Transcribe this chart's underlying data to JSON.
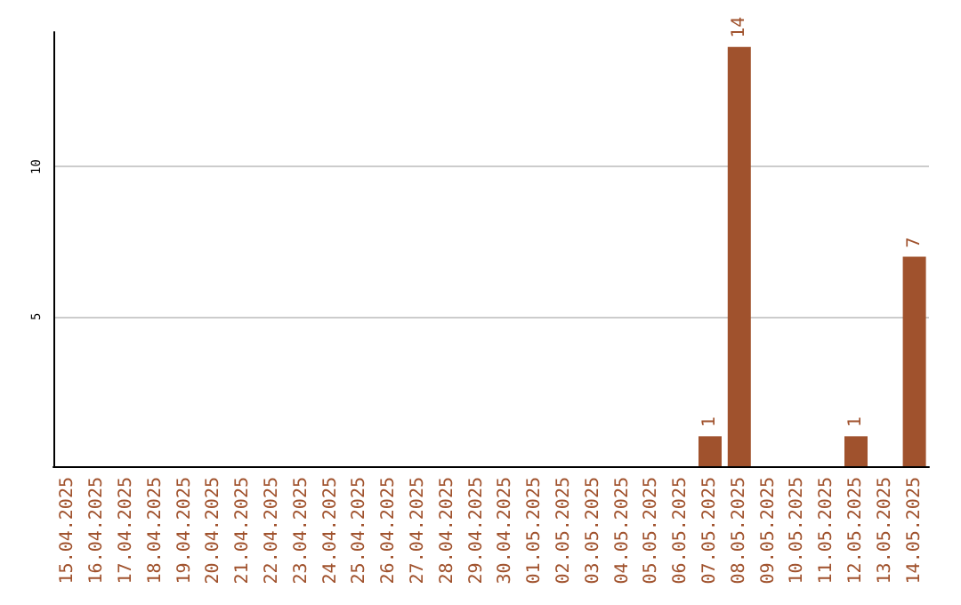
{
  "chart_data": {
    "type": "bar",
    "categories": [
      "15.04.2025",
      "16.04.2025",
      "17.04.2025",
      "18.04.2025",
      "19.04.2025",
      "20.04.2025",
      "21.04.2025",
      "22.04.2025",
      "23.04.2025",
      "24.04.2025",
      "25.04.2025",
      "26.04.2025",
      "27.04.2025",
      "28.04.2025",
      "29.04.2025",
      "30.04.2025",
      "01.05.2025",
      "02.05.2025",
      "03.05.2025",
      "04.05.2025",
      "05.05.2025",
      "06.05.2025",
      "07.05.2025",
      "08.05.2025",
      "09.05.2025",
      "10.05.2025",
      "11.05.2025",
      "12.05.2025",
      "13.05.2025",
      "14.05.2025"
    ],
    "values": [
      0,
      0,
      0,
      0,
      0,
      0,
      0,
      0,
      0,
      0,
      0,
      0,
      0,
      0,
      0,
      0,
      0,
      0,
      0,
      0,
      0,
      0,
      1,
      14,
      0,
      0,
      0,
      1,
      0,
      7
    ],
    "value_labels": [
      null,
      null,
      null,
      null,
      null,
      null,
      null,
      null,
      null,
      null,
      null,
      null,
      null,
      null,
      null,
      null,
      null,
      null,
      null,
      null,
      null,
      null,
      "1",
      "14",
      null,
      null,
      null,
      "1",
      null,
      "7"
    ],
    "color": "#a0522d",
    "ylim": [
      0,
      14.5
    ],
    "yticks": [
      5,
      10
    ],
    "grid": "y"
  }
}
